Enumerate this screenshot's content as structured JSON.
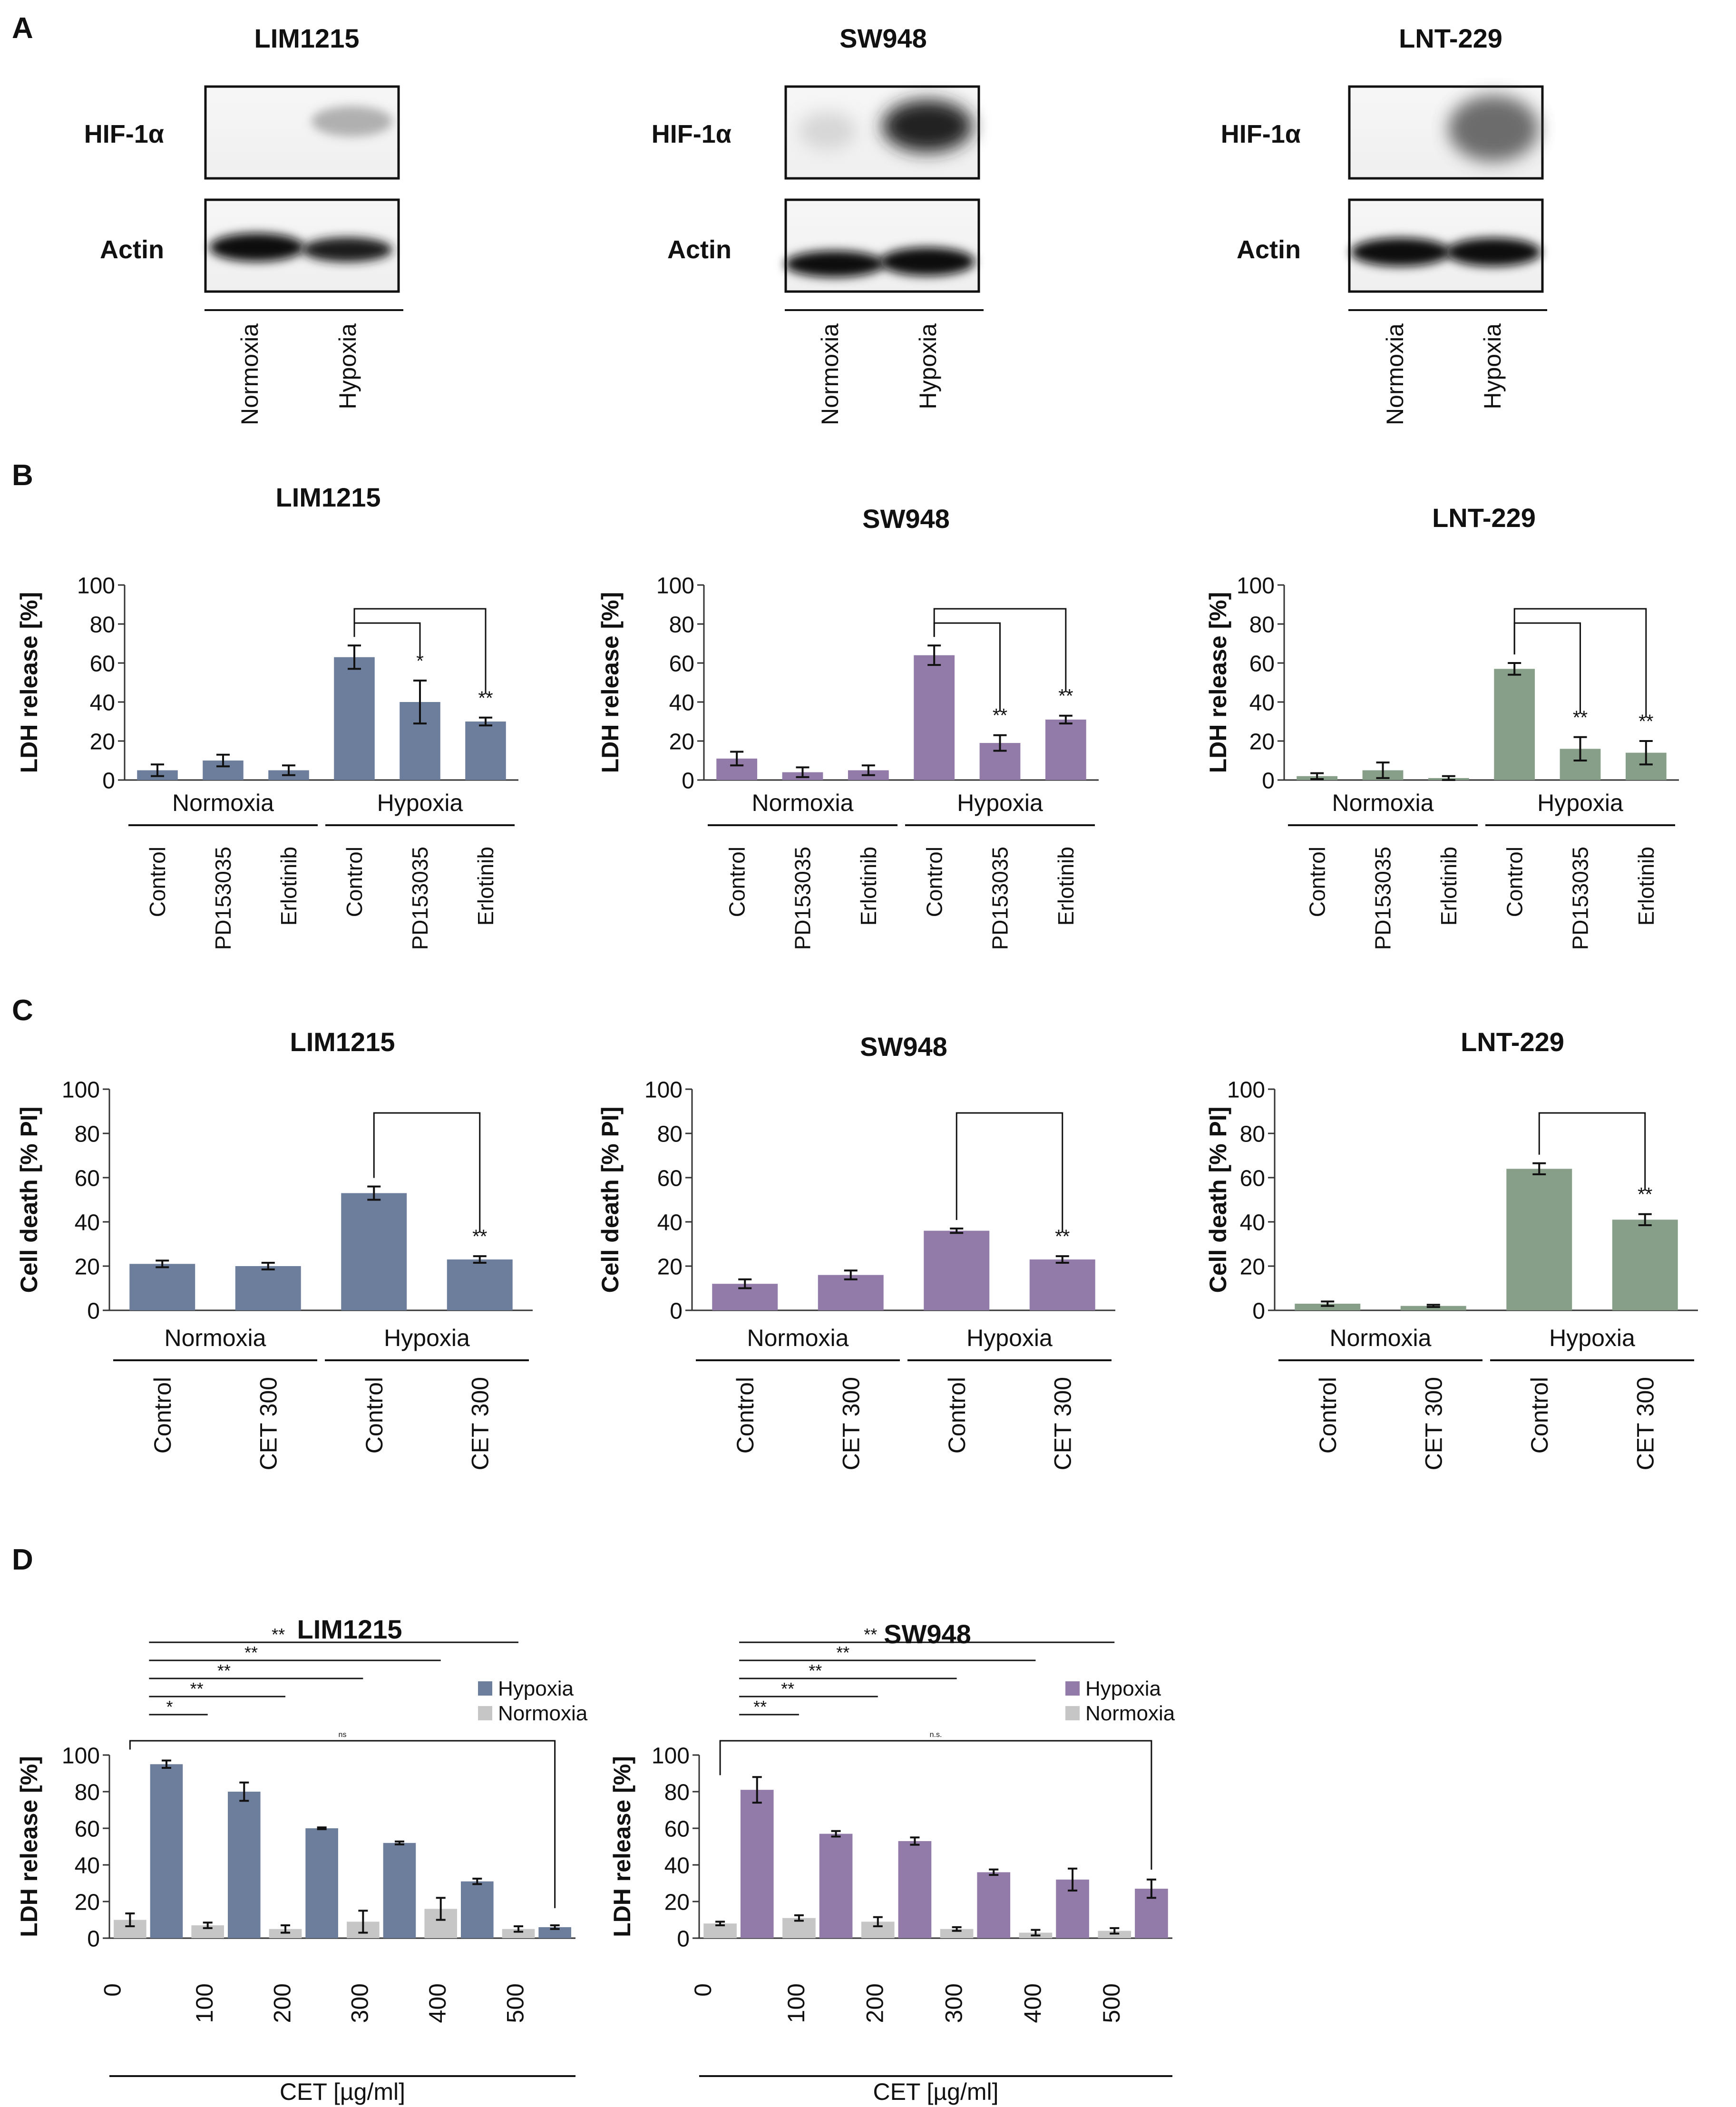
{
  "colors": {
    "lim": "#6d7d9c",
    "sw": "#927ba8",
    "lnt": "#879f88",
    "normoxia": "#c6c6c6"
  },
  "panelA": {
    "letter": "A",
    "blots": [
      {
        "title": "LIM1215",
        "row1": "HIF-1α",
        "row2": "Actin",
        "labels": [
          "Normoxia",
          "Hypoxia"
        ]
      },
      {
        "title": "SW948",
        "row1": "HIF-1α",
        "row2": "Actin",
        "labels": [
          "Normoxia",
          "Hypoxia"
        ]
      },
      {
        "title": "LNT-229",
        "row1": "HIF-1α",
        "row2": "Actin",
        "labels": [
          "Normoxia",
          "Hypoxia"
        ]
      }
    ]
  },
  "panelB": {
    "letter": "B"
  },
  "panelC": {
    "letter": "C"
  },
  "panelD": {
    "letter": "D"
  },
  "chart_data": [
    {
      "id": "B1",
      "type": "bar",
      "title": "LIM1215",
      "ylabel": "LDH  release [%]",
      "ylim": [
        0,
        100
      ],
      "yticks": [
        0,
        20,
        40,
        60,
        80,
        100
      ],
      "color": "#6d7d9c",
      "categories": [
        "Control",
        "PD153035",
        "Erlotinib",
        "Control",
        "PD153035",
        "Erlotinib"
      ],
      "values": [
        5,
        10,
        5,
        63,
        40,
        30
      ],
      "errors": [
        3,
        3,
        2.5,
        6,
        11,
        2
      ],
      "groups": [
        "Normoxia",
        "Hypoxia"
      ],
      "annotations": [
        {
          "to": 4,
          "label": "*"
        },
        {
          "to": 5,
          "label": "**"
        }
      ]
    },
    {
      "id": "B2",
      "type": "bar",
      "title": "SW948",
      "ylabel": "LDH  release [%]",
      "ylim": [
        0,
        100
      ],
      "yticks": [
        0,
        20,
        40,
        60,
        80,
        100
      ],
      "color": "#927ba8",
      "categories": [
        "Control",
        "PD153035",
        "Erlotinib",
        "Control",
        "PD153035",
        "Erlotinib"
      ],
      "values": [
        11,
        4,
        5,
        64,
        19,
        31
      ],
      "errors": [
        3.5,
        2.5,
        2.5,
        5,
        4,
        2
      ],
      "groups": [
        "Normoxia",
        "Hypoxia"
      ],
      "annotations": [
        {
          "to": 4,
          "label": "**"
        },
        {
          "to": 5,
          "label": "**"
        }
      ]
    },
    {
      "id": "B3",
      "type": "bar",
      "title": "LNT-229",
      "ylabel": "LDH  release [%]",
      "ylim": [
        0,
        100
      ],
      "yticks": [
        0,
        20,
        40,
        60,
        80,
        100
      ],
      "color": "#879f88",
      "categories": [
        "Control",
        "PD153035",
        "Erlotinib",
        "Control",
        "PD153035",
        "Erlotinib"
      ],
      "values": [
        2,
        5,
        1,
        57,
        16,
        14
      ],
      "errors": [
        1.5,
        4,
        1,
        3,
        6,
        6
      ],
      "groups": [
        "Normoxia",
        "Hypoxia"
      ],
      "annotations": [
        {
          "to": 4,
          "label": "**"
        },
        {
          "to": 5,
          "label": "**"
        }
      ]
    },
    {
      "id": "C1",
      "type": "bar",
      "title": "LIM1215",
      "ylabel": "Cell death [% PI]",
      "ylim": [
        0,
        100
      ],
      "yticks": [
        0,
        20,
        40,
        60,
        80,
        100
      ],
      "color": "#6d7d9c",
      "categories": [
        "Control",
        "CET 300",
        "Control",
        "CET 300"
      ],
      "values": [
        21,
        20,
        53,
        23
      ],
      "errors": [
        1.5,
        1.5,
        3,
        1.5
      ],
      "groups": [
        "Normoxia",
        "Hypoxia"
      ],
      "annotations": [
        {
          "to": 3,
          "label": "**"
        }
      ]
    },
    {
      "id": "C2",
      "type": "bar",
      "title": "SW948",
      "ylabel": "Cell death [% PI]",
      "ylim": [
        0,
        100
      ],
      "yticks": [
        0,
        20,
        40,
        60,
        80,
        100
      ],
      "color": "#927ba8",
      "categories": [
        "Control",
        "CET 300",
        "Control",
        "CET 300"
      ],
      "values": [
        12,
        16,
        36,
        23
      ],
      "errors": [
        2,
        2,
        1,
        1.5
      ],
      "groups": [
        "Normoxia",
        "Hypoxia"
      ],
      "annotations": [
        {
          "to": 3,
          "label": "**"
        }
      ]
    },
    {
      "id": "C3",
      "type": "bar",
      "title": "LNT-229",
      "ylabel": "Cell death [% PI]",
      "ylim": [
        0,
        100
      ],
      "yticks": [
        0,
        20,
        40,
        60,
        80,
        100
      ],
      "color": "#879f88",
      "categories": [
        "Control",
        "CET 300",
        "Control",
        "CET 300"
      ],
      "values": [
        3,
        2,
        64,
        41
      ],
      "errors": [
        1,
        0.5,
        2.5,
        2.5
      ],
      "groups": [
        "Normoxia",
        "Hypoxia"
      ],
      "annotations": [
        {
          "to": 3,
          "label": "**"
        }
      ]
    },
    {
      "id": "D1",
      "type": "bar",
      "title": "LIM1215",
      "ylabel": "LDH release [%]",
      "xlabel": "CET [µg/ml]",
      "ylim": [
        0,
        100
      ],
      "yticks": [
        0,
        20,
        40,
        60,
        80,
        100
      ],
      "categories": [
        "0",
        "100",
        "200",
        "300",
        "400",
        "500"
      ],
      "series": [
        {
          "name": "Hypoxia",
          "color": "#6d7d9c",
          "values": [
            95,
            80,
            60,
            52,
            31,
            6
          ],
          "errors": [
            2,
            5,
            0.5,
            0.8,
            1.5,
            1
          ]
        },
        {
          "name": "Normoxia",
          "color": "#c6c6c6",
          "values": [
            10,
            7,
            5,
            9,
            16,
            5
          ],
          "errors": [
            3.5,
            1.5,
            2,
            6,
            6,
            1.5
          ]
        }
      ],
      "significance": [
        "*",
        "**",
        "**",
        "**",
        "**"
      ],
      "bracket_label": "ns"
    },
    {
      "id": "D2",
      "type": "bar",
      "title": "SW948",
      "ylabel": "LDH release [%]",
      "xlabel": "CET [µg/ml]",
      "ylim": [
        0,
        100
      ],
      "yticks": [
        0,
        20,
        40,
        60,
        80,
        100
      ],
      "categories": [
        "0",
        "100",
        "200",
        "300",
        "400",
        "500"
      ],
      "series": [
        {
          "name": "Hypoxia",
          "color": "#927ba8",
          "values": [
            81,
            57,
            53,
            36,
            32,
            27
          ],
          "errors": [
            7,
            1.5,
            2,
            1.5,
            6,
            5
          ]
        },
        {
          "name": "Normoxia",
          "color": "#c6c6c6",
          "values": [
            8,
            11,
            9,
            5,
            3,
            4
          ],
          "errors": [
            1,
            1.5,
            2.5,
            1,
            1.5,
            1.5
          ]
        }
      ],
      "significance": [
        "**",
        "**",
        "**",
        "**",
        "**"
      ],
      "bracket_label": "n.s."
    }
  ]
}
